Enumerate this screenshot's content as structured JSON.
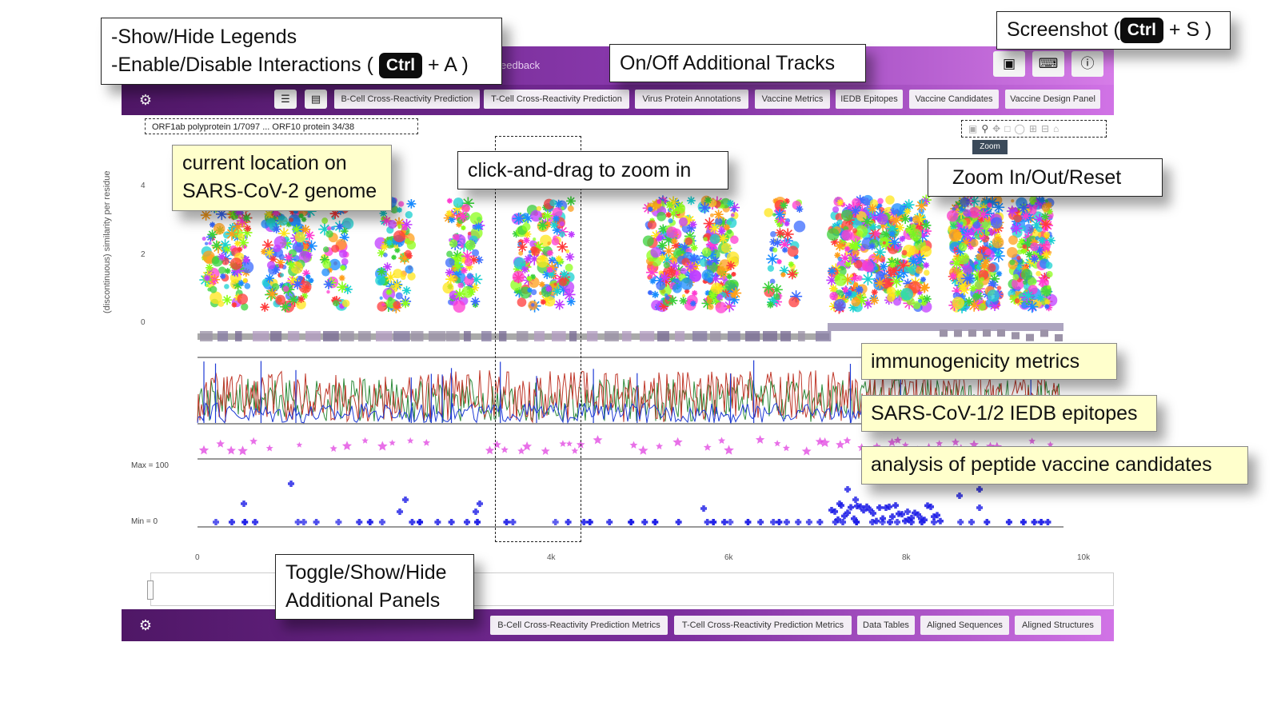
{
  "header": {
    "feedback_link": "eedback",
    "camera_icon": "camera-icon",
    "keyboard_icon": "keyboard-icon",
    "help_icon": "help-icon"
  },
  "toolbar": {
    "gear_icon": "gear-icon",
    "list_icon": "list-icon",
    "legend_icon": "legend-icon",
    "tracks": [
      "B-Cell Cross-Reactivity Prediction",
      "T-Cell Cross-Reactivity Prediction",
      "Virus Protein Annotations",
      "Vaccine Metrics",
      "IEDB Epitopes",
      "Vaccine Candidates",
      "Vaccine Design Panel"
    ]
  },
  "bottom_toolbar": {
    "panels": [
      "B-Cell Cross-Reactivity Prediction Metrics",
      "T-Cell Cross-Reactivity Prediction Metrics",
      "Data Tables",
      "Aligned Sequences",
      "Aligned Structures"
    ]
  },
  "location": "ORF1ab polyprotein 1/7097 ... ORF10 protein 34/38",
  "modebar": {
    "icons": [
      "camera-icon",
      "zoom-icon",
      "pan-icon",
      "box-select-icon",
      "lasso-icon",
      "zoom-in-icon",
      "zoom-out-icon",
      "reset-icon"
    ],
    "tooltip": "Zoom"
  },
  "plot": {
    "ylabel": "(discontinuous) similarity per residue",
    "yticks": [
      "4",
      "2",
      "0"
    ],
    "xticks": [
      "0",
      "4k",
      "6k",
      "8k",
      "10k"
    ],
    "max_label": "Max = 100",
    "min_label": "Min = 0"
  },
  "callouts": {
    "legends_line1": "-Show/Hide Legends",
    "legends_line2_pre": "-Enable/Disable Interactions (",
    "legends_line2_post": "+ A )",
    "ctrl": "Ctrl",
    "tracks": "On/Off Additional Tracks",
    "screenshot_pre": "Screenshot (",
    "screenshot_post": "+ S )",
    "location_line1": "current location on",
    "location_line2": "SARS-CoV-2 genome",
    "drag": "click-and-drag to zoom in",
    "zoom": "Zoom In/Out/Reset",
    "immuno": "immunogenicity metrics",
    "iedb": "SARS-CoV-1/2 IEDB epitopes",
    "vaccine": "analysis of peptide vaccine candidates",
    "panels_line1": "Toggle/Show/Hide",
    "panels_line2": "Additional Panels"
  },
  "colors": {
    "purple_dark": "#5e1f78",
    "purple_light": "#d67ce8",
    "epitope_star": "#e040e0",
    "candidate_cross": "#1a1ae6",
    "metric_blue": "#1f3bd6",
    "metric_red": "#c0392b",
    "metric_green": "#2e8b3a"
  }
}
